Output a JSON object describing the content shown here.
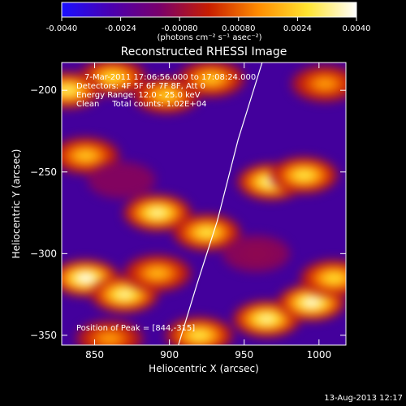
{
  "chart_data": {
    "type": "heatmap",
    "title": "Reconstructed RHESSI Image",
    "xlabel": "Heliocentric X (arcsec)",
    "ylabel": "Heliocentric Y (arcsec)",
    "xlim": [
      828,
      1018
    ],
    "ylim": [
      -356,
      -183
    ],
    "x_ticks": [
      850,
      900,
      950,
      1000
    ],
    "y_ticks": [
      -350,
      -300,
      -250,
      -200
    ],
    "colorbar": {
      "range": [
        -0.004,
        0.004
      ],
      "ticks": [
        "-0.0040",
        "-0.0024",
        "-0.00080",
        "0.00080",
        "0.0024",
        "0.0040"
      ],
      "label": "(photons cm⁻² s⁻¹ asec⁻²)",
      "colormap": [
        "#1a10ff",
        "#4a00b0",
        "#7a006a",
        "#c81e00",
        "#ff8c00",
        "#ffe430",
        "#ffffff"
      ]
    },
    "annotations": {
      "time": "7-Mar-2011 17:06:56.000 to 17:08:24.000",
      "detectors": "Detectors: 4F 5F 6F 7F 8F, Att 0",
      "energy": "Energy Range: 12.0 - 25.0 keV",
      "clean": "Clean     Total counts: 1.02E+04",
      "peak": "Position of Peak = [844,-315]"
    },
    "limb": {
      "x": [
        906,
        918,
        932,
        946,
        962
      ],
      "y": [
        -356,
        -320,
        -280,
        -230,
        -183
      ]
    },
    "blobs": [
      {
        "x": 862,
        "y": -192,
        "value": 0.0026
      },
      {
        "x": 832,
        "y": -200,
        "value": 0.003
      },
      {
        "x": 898,
        "y": -203,
        "value": 0.0024
      },
      {
        "x": 928,
        "y": -193,
        "value": 0.0022
      },
      {
        "x": 1004,
        "y": -196,
        "value": 0.0016
      },
      {
        "x": 844,
        "y": -240,
        "value": 0.0022
      },
      {
        "x": 892,
        "y": -275,
        "value": 0.0034
      },
      {
        "x": 925,
        "y": -287,
        "value": 0.0028
      },
      {
        "x": 968,
        "y": -256,
        "value": 0.0035
      },
      {
        "x": 990,
        "y": -252,
        "value": 0.0028
      },
      {
        "x": 844,
        "y": -315,
        "value": 0.004
      },
      {
        "x": 870,
        "y": -325,
        "value": 0.0034
      },
      {
        "x": 892,
        "y": -312,
        "value": 0.002
      },
      {
        "x": 965,
        "y": -340,
        "value": 0.0034
      },
      {
        "x": 995,
        "y": -330,
        "value": 0.0038
      },
      {
        "x": 1010,
        "y": -315,
        "value": 0.0026
      },
      {
        "x": 920,
        "y": -350,
        "value": 0.0028
      },
      {
        "x": 860,
        "y": -352,
        "value": 0.0016
      },
      {
        "x": 958,
        "y": -300,
        "value": -0.001
      },
      {
        "x": 868,
        "y": -255,
        "value": -0.0012
      }
    ]
  },
  "footer": {
    "date": "13-Aug-2013 12:17"
  }
}
